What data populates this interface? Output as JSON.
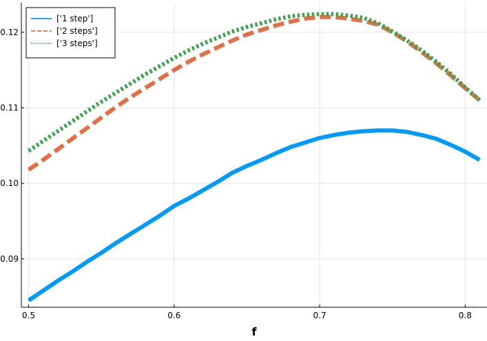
{
  "chart_data": {
    "type": "line",
    "xlabel": "f",
    "ylabel": "",
    "xlim": [
      0.495,
      0.815
    ],
    "ylim": [
      0.0836,
      0.1239
    ],
    "xticks": [
      0.5,
      0.6,
      0.7,
      0.8
    ],
    "xtick_labels": [
      "0.5",
      "0.6",
      "0.7",
      "0.8"
    ],
    "yticks": [
      0.09,
      0.1,
      0.11,
      0.12
    ],
    "ytick_labels": [
      "0.09",
      "0.10",
      "0.11",
      "0.12"
    ],
    "grid": true,
    "legend_position": "top-left",
    "x": [
      0.5,
      0.51,
      0.52,
      0.53,
      0.54,
      0.55,
      0.56,
      0.57,
      0.58,
      0.59,
      0.6,
      0.61,
      0.62,
      0.63,
      0.64,
      0.65,
      0.66,
      0.67,
      0.68,
      0.69,
      0.7,
      0.71,
      0.72,
      0.73,
      0.74,
      0.75,
      0.76,
      0.77,
      0.78,
      0.79,
      0.8,
      0.81
    ],
    "series": [
      {
        "name": "['1 step']",
        "color": "#009af9",
        "dash": "solid",
        "values": [
          0.0845,
          0.0858,
          0.0871,
          0.0883,
          0.0896,
          0.0908,
          0.0921,
          0.0933,
          0.0945,
          0.0957,
          0.097,
          0.098,
          0.0991,
          0.1002,
          0.1014,
          0.1023,
          0.1031,
          0.104,
          0.1048,
          0.1054,
          0.106,
          0.1064,
          0.1067,
          0.1069,
          0.107,
          0.107,
          0.1068,
          0.1064,
          0.1059,
          0.1051,
          0.1042,
          0.1031
        ]
      },
      {
        "name": "['2 steps']",
        "color": "#e26f46",
        "dash": "dashed",
        "values": [
          0.1018,
          0.1031,
          0.1045,
          0.1059,
          0.1073,
          0.1087,
          0.1101,
          0.1114,
          0.1126,
          0.1138,
          0.115,
          0.1161,
          0.1171,
          0.118,
          0.1189,
          0.1197,
          0.1203,
          0.1209,
          0.1214,
          0.1218,
          0.122,
          0.122,
          0.1218,
          0.1215,
          0.121,
          0.12,
          0.1188,
          0.1174,
          0.1159,
          0.1143,
          0.1126,
          0.111
        ]
      },
      {
        "name": "['3 steps']",
        "color": "#3da44d",
        "dash": "dotted",
        "values": [
          0.1043,
          0.1056,
          0.1069,
          0.1082,
          0.1095,
          0.1108,
          0.112,
          0.1132,
          0.1144,
          0.1155,
          0.1166,
          0.1176,
          0.1185,
          0.1193,
          0.1201,
          0.1207,
          0.1212,
          0.1217,
          0.1221,
          0.1223,
          0.1224,
          0.1224,
          0.1222,
          0.1219,
          0.1212,
          0.1201,
          0.1189,
          0.1176,
          0.1161,
          0.1145,
          0.1127,
          0.111
        ]
      }
    ]
  }
}
